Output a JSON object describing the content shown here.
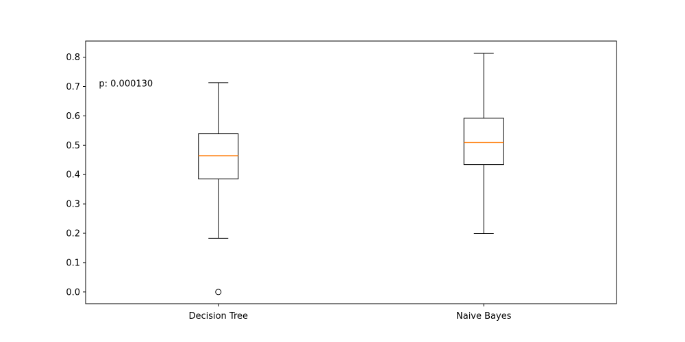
{
  "chart_data": {
    "type": "box",
    "title": "",
    "xlabel": "",
    "ylabel": "",
    "categories": [
      "Decision Tree",
      "Naive Bayes"
    ],
    "boxes": [
      {
        "name": "Decision Tree",
        "whisker_low": 0.183,
        "q1": 0.385,
        "median": 0.464,
        "q3": 0.539,
        "whisker_high": 0.713,
        "outliers": [
          0.0
        ]
      },
      {
        "name": "Naive Bayes",
        "whisker_low": 0.199,
        "q1": 0.434,
        "median": 0.509,
        "q3": 0.592,
        "whisker_high": 0.813,
        "outliers": []
      }
    ],
    "ylim": [
      -0.04,
      0.855
    ],
    "yticks": [
      0.0,
      0.1,
      0.2,
      0.3,
      0.4,
      0.5,
      0.6,
      0.7,
      0.8
    ],
    "yticklabels": [
      "0.0",
      "0.1",
      "0.2",
      "0.3",
      "0.4",
      "0.5",
      "0.6",
      "0.7",
      "0.8"
    ],
    "annotation": {
      "text": "p: 0.000130",
      "x": 0.55,
      "y": 0.71
    },
    "grid": false,
    "colors": {
      "box": "#000000",
      "median": "#ff7f0e"
    }
  }
}
